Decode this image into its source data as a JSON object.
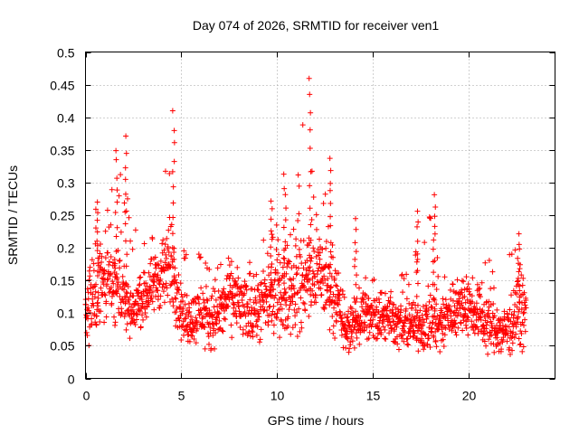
{
  "chart_data": {
    "type": "scatter",
    "title": "Day 074 of 2026, SRMTID for receiver ven1",
    "xlabel": "GPS time / hours",
    "ylabel": "SRMTID / TECUs",
    "xlim": [
      0,
      24.5
    ],
    "ylim": [
      0,
      0.5
    ],
    "x_ticks": [
      0,
      5,
      10,
      15,
      20
    ],
    "y_ticks": [
      0,
      0.05,
      0.1,
      0.15,
      0.2,
      0.25,
      0.3,
      0.35,
      0.4,
      0.45,
      0.5
    ],
    "grid": true,
    "marker": "plus",
    "color": "#ff0000",
    "series": [
      {
        "name": "SRMTID",
        "envelope_hours": [
          0,
          0.5,
          1,
          1.5,
          2,
          2.5,
          3,
          3.5,
          4,
          4.5,
          5,
          5.5,
          6,
          6.5,
          7,
          7.5,
          8,
          8.5,
          9,
          9.5,
          10,
          10.5,
          11,
          11.5,
          12,
          12.5,
          13,
          13.5,
          14,
          14.5,
          15,
          15.5,
          16,
          16.5,
          17,
          17.5,
          18,
          18.5,
          19,
          19.5,
          20,
          20.5,
          21,
          21.5,
          22,
          22.5,
          23
        ],
        "typical_values": [
          0.1,
          0.14,
          0.15,
          0.14,
          0.13,
          0.1,
          0.12,
          0.14,
          0.16,
          0.17,
          0.1,
          0.09,
          0.1,
          0.09,
          0.1,
          0.12,
          0.11,
          0.1,
          0.1,
          0.12,
          0.13,
          0.13,
          0.14,
          0.15,
          0.16,
          0.15,
          0.13,
          0.07,
          0.08,
          0.1,
          0.09,
          0.1,
          0.09,
          0.08,
          0.08,
          0.08,
          0.09,
          0.08,
          0.1,
          0.11,
          0.11,
          0.1,
          0.08,
          0.07,
          0.07,
          0.1,
          0.09
        ],
        "peak_values": [
          0.16,
          0.27,
          0.25,
          0.35,
          0.37,
          0.22,
          0.29,
          0.25,
          0.28,
          0.4,
          0.2,
          0.2,
          0.19,
          0.17,
          0.18,
          0.19,
          0.17,
          0.19,
          0.16,
          0.27,
          0.31,
          0.22,
          0.28,
          0.46,
          0.27,
          0.34,
          0.2,
          0.15,
          0.18,
          0.24,
          0.16,
          0.17,
          0.15,
          0.16,
          0.26,
          0.17,
          0.28,
          0.17,
          0.16,
          0.15,
          0.16,
          0.15,
          0.2,
          0.14,
          0.21,
          0.22,
          0.15
        ],
        "min_values": [
          0.04,
          0.06,
          0.07,
          0.08,
          0.06,
          0.06,
          0.08,
          0.09,
          0.1,
          0.1,
          0.05,
          0.05,
          0.05,
          0.04,
          0.05,
          0.06,
          0.05,
          0.05,
          0.04,
          0.06,
          0.06,
          0.06,
          0.06,
          0.07,
          0.08,
          0.07,
          0.06,
          0.03,
          0.04,
          0.05,
          0.05,
          0.05,
          0.05,
          0.04,
          0.04,
          0.04,
          0.03,
          0.03,
          0.05,
          0.06,
          0.06,
          0.05,
          0.03,
          0.03,
          0.03,
          0.04,
          0.04
        ]
      }
    ]
  }
}
